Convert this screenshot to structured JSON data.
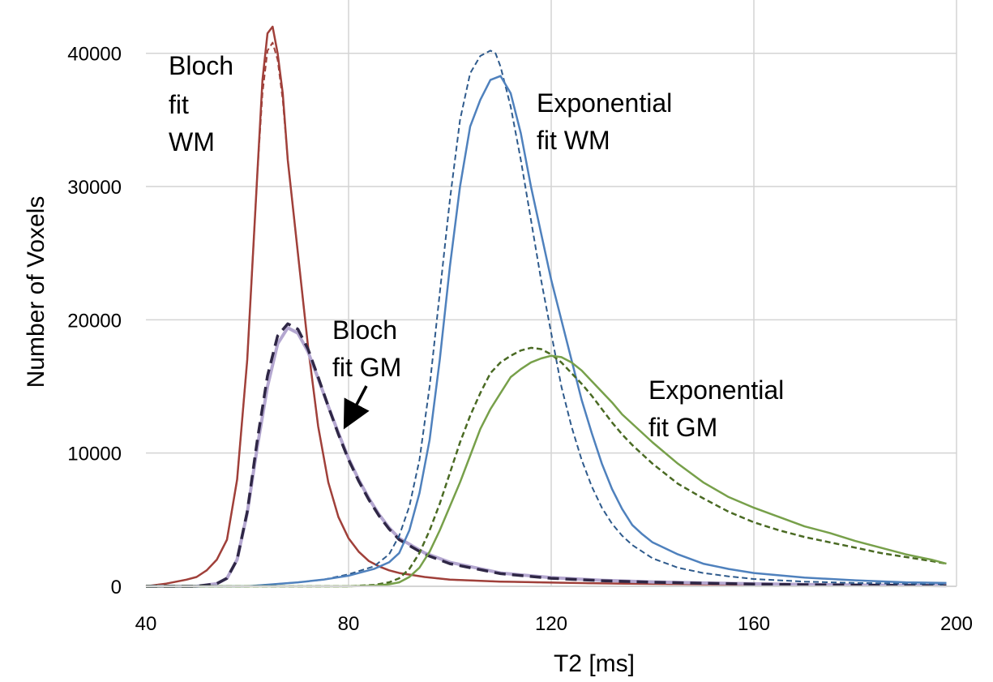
{
  "chart_data": {
    "type": "line",
    "title": "",
    "xlabel": "T2 [ms]",
    "ylabel": "Number of Voxels",
    "xlim": [
      40,
      200
    ],
    "ylim": [
      0,
      44000
    ],
    "xticks": [
      40,
      80,
      120,
      160,
      200
    ],
    "yticks": [
      0,
      10000,
      20000,
      30000,
      40000
    ],
    "grid": true,
    "legend": "none",
    "series": [
      {
        "name": "Bloch fit WM (reference, dashed)",
        "color": "#a0403a",
        "style": "dashed",
        "width": 2,
        "x": [
          40,
          44,
          48,
          50,
          52,
          54,
          56,
          58,
          60,
          62,
          63,
          64,
          65,
          66,
          67,
          68,
          70,
          72,
          74,
          76,
          78,
          80,
          82,
          84,
          86,
          88,
          90,
          95,
          100,
          110,
          120,
          130,
          140,
          150,
          160,
          170,
          180,
          190,
          198
        ],
        "y": [
          0,
          200,
          500,
          700,
          1200,
          2000,
          3500,
          8000,
          17000,
          31000,
          37000,
          40200,
          40800,
          39500,
          36500,
          32000,
          25000,
          18000,
          12000,
          7800,
          5200,
          3600,
          2600,
          1900,
          1500,
          1200,
          1000,
          700,
          500,
          350,
          280,
          220,
          180,
          150,
          120,
          100,
          80,
          60,
          50
        ]
      },
      {
        "name": "Bloch fit WM",
        "color": "#a0403a",
        "style": "solid",
        "width": 2.5,
        "x": [
          40,
          44,
          48,
          50,
          52,
          54,
          56,
          58,
          60,
          62,
          63,
          64,
          65,
          66,
          67,
          68,
          70,
          72,
          74,
          76,
          78,
          80,
          82,
          84,
          86,
          88,
          90,
          95,
          100,
          110,
          120,
          130,
          140,
          150,
          160,
          170,
          180,
          190,
          198
        ],
        "y": [
          0,
          200,
          500,
          700,
          1200,
          2000,
          3500,
          8000,
          17000,
          31000,
          38000,
          41500,
          42000,
          40000,
          37000,
          32000,
          25000,
          18000,
          12000,
          7800,
          5200,
          3600,
          2600,
          1900,
          1500,
          1200,
          1000,
          700,
          500,
          350,
          280,
          220,
          180,
          150,
          120,
          100,
          80,
          60,
          50
        ]
      },
      {
        "name": "Bloch fit GM",
        "color": "#b4a7d0",
        "style": "solid",
        "width": 4,
        "x": [
          40,
          50,
          54,
          56,
          58,
          60,
          62,
          64,
          66,
          68,
          70,
          72,
          74,
          76,
          78,
          80,
          82,
          84,
          86,
          88,
          90,
          95,
          100,
          110,
          120,
          130,
          140,
          150,
          160,
          170,
          180,
          190,
          198
        ],
        "y": [
          0,
          0,
          200,
          600,
          2000,
          5500,
          10500,
          15000,
          18200,
          19400,
          19000,
          17600,
          15600,
          13500,
          11500,
          9600,
          8000,
          6600,
          5400,
          4400,
          3600,
          2500,
          1800,
          1000,
          650,
          450,
          330,
          250,
          190,
          140,
          100,
          70,
          50
        ]
      },
      {
        "name": "Bloch fit GM (reference, dashed)",
        "color": "#2f2746",
        "style": "dashed",
        "width": 3.5,
        "x": [
          40,
          50,
          54,
          56,
          58,
          60,
          62,
          64,
          66,
          68,
          70,
          72,
          74,
          76,
          78,
          80,
          82,
          84,
          86,
          88,
          90,
          95,
          100,
          110,
          120,
          130,
          140,
          150,
          160,
          170,
          180,
          190,
          198
        ],
        "y": [
          0,
          0,
          200,
          600,
          2000,
          5600,
          11000,
          15800,
          18800,
          19700,
          19300,
          17800,
          15700,
          13500,
          11400,
          9500,
          7900,
          6500,
          5300,
          4300,
          3500,
          2400,
          1700,
          950,
          600,
          420,
          310,
          230,
          170,
          120,
          90,
          60,
          40
        ]
      },
      {
        "name": "Exponential fit WM (reference, dashed)",
        "color": "#2e5a8c",
        "style": "dashed",
        "width": 2,
        "x": [
          40,
          60,
          70,
          75,
          80,
          85,
          88,
          90,
          92,
          94,
          96,
          98,
          100,
          102,
          104,
          106,
          108,
          109,
          110,
          112,
          114,
          116,
          118,
          120,
          122,
          124,
          126,
          128,
          130,
          132,
          134,
          136,
          140,
          145,
          150,
          155,
          160,
          170,
          180,
          190,
          198
        ],
        "y": [
          0,
          0,
          300,
          500,
          900,
          1500,
          2400,
          3800,
          6000,
          9500,
          15000,
          22000,
          29000,
          35000,
          38500,
          39800,
          40200,
          40000,
          39000,
          36000,
          32000,
          27500,
          23000,
          19000,
          15000,
          12000,
          9500,
          7500,
          5900,
          4700,
          3800,
          3100,
          2100,
          1400,
          1000,
          750,
          550,
          350,
          250,
          200,
          150
        ]
      },
      {
        "name": "Exponential fit WM",
        "color": "#4f81bd",
        "style": "solid",
        "width": 2.5,
        "x": [
          40,
          60,
          70,
          75,
          80,
          85,
          88,
          90,
          92,
          94,
          96,
          98,
          100,
          102,
          104,
          106,
          108,
          110,
          112,
          114,
          116,
          118,
          120,
          122,
          124,
          126,
          128,
          130,
          132,
          134,
          136,
          138,
          140,
          145,
          150,
          155,
          160,
          170,
          180,
          190,
          198
        ],
        "y": [
          0,
          0,
          300,
          500,
          800,
          1300,
          1800,
          2500,
          4200,
          7000,
          11000,
          17000,
          24000,
          30000,
          34500,
          36500,
          38000,
          38300,
          37000,
          34000,
          30000,
          26500,
          23000,
          20000,
          17000,
          14000,
          11500,
          9200,
          7300,
          5800,
          4600,
          3900,
          3300,
          2400,
          1700,
          1300,
          1000,
          650,
          450,
          300,
          250
        ]
      },
      {
        "name": "Exponential fit GM (reference, dashed)",
        "color": "#4a6a23",
        "style": "dashed",
        "width": 2.5,
        "x": [
          40,
          80,
          85,
          88,
          90,
          92,
          94,
          96,
          98,
          100,
          102,
          104,
          106,
          108,
          110,
          112,
          114,
          116,
          118,
          120,
          122,
          124,
          126,
          128,
          130,
          132,
          134,
          136,
          140,
          145,
          150,
          155,
          160,
          165,
          170,
          175,
          180,
          185,
          190,
          195,
          198
        ],
        "y": [
          0,
          0,
          100,
          300,
          600,
          1300,
          2500,
          4200,
          6200,
          8500,
          10800,
          12800,
          14500,
          16000,
          16800,
          17300,
          17700,
          17900,
          17800,
          17400,
          16800,
          16000,
          15200,
          14300,
          13300,
          12300,
          11400,
          10600,
          9200,
          7700,
          6600,
          5600,
          4800,
          4200,
          3700,
          3300,
          2900,
          2500,
          2200,
          1900,
          1700
        ]
      },
      {
        "name": "Exponential fit GM",
        "color": "#77a04a",
        "style": "solid",
        "width": 2.5,
        "x": [
          40,
          80,
          85,
          88,
          90,
          92,
          94,
          96,
          98,
          100,
          102,
          104,
          106,
          108,
          110,
          112,
          114,
          116,
          118,
          120,
          122,
          124,
          126,
          128,
          130,
          132,
          134,
          136,
          140,
          145,
          150,
          155,
          160,
          165,
          170,
          175,
          180,
          185,
          190,
          195,
          198
        ],
        "y": [
          0,
          0,
          50,
          150,
          300,
          700,
          1400,
          2600,
          4200,
          6000,
          7800,
          9800,
          11800,
          13300,
          14500,
          15700,
          16300,
          16800,
          17100,
          17300,
          17200,
          16800,
          16200,
          15400,
          14600,
          13800,
          12900,
          12200,
          10800,
          9200,
          7800,
          6700,
          5900,
          5200,
          4500,
          4000,
          3400,
          2900,
          2400,
          2000,
          1700
        ]
      }
    ],
    "annotations": [
      {
        "lines": [
          "Bloch",
          "fit",
          "WM"
        ]
      },
      {
        "lines": [
          "Bloch",
          "fit GM"
        ]
      },
      {
        "lines": [
          "Exponential",
          "fit WM"
        ]
      },
      {
        "lines": [
          "Exponential",
          "fit GM"
        ]
      }
    ]
  },
  "colors": {
    "axis": "#000000",
    "grid": "#d4d4d4",
    "background": "#ffffff"
  }
}
